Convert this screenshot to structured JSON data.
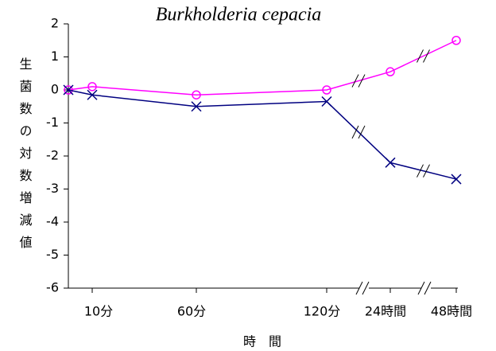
{
  "chart_data": {
    "type": "line",
    "title": "Burkholderia cepacia",
    "x_label": "時　間",
    "y_label": "生菌数の対数増減値",
    "categories": [
      null,
      "10分",
      "60分",
      "120分",
      "24時間",
      "48時間"
    ],
    "series": [
      {
        "color": "#ff00ff",
        "marker": "circle",
        "values": [
          0,
          0.1,
          -0.15,
          0,
          0.55,
          1.5
        ]
      },
      {
        "color": "#000080",
        "marker": "x",
        "values": [
          0,
          -0.15,
          -0.5,
          -0.35,
          -2.2,
          -2.7
        ]
      }
    ],
    "ylim": [
      -6,
      2
    ],
    "yticks": [
      -6,
      -5,
      -4,
      -3,
      -2,
      -1,
      0,
      1,
      2
    ],
    "grid": false
  }
}
